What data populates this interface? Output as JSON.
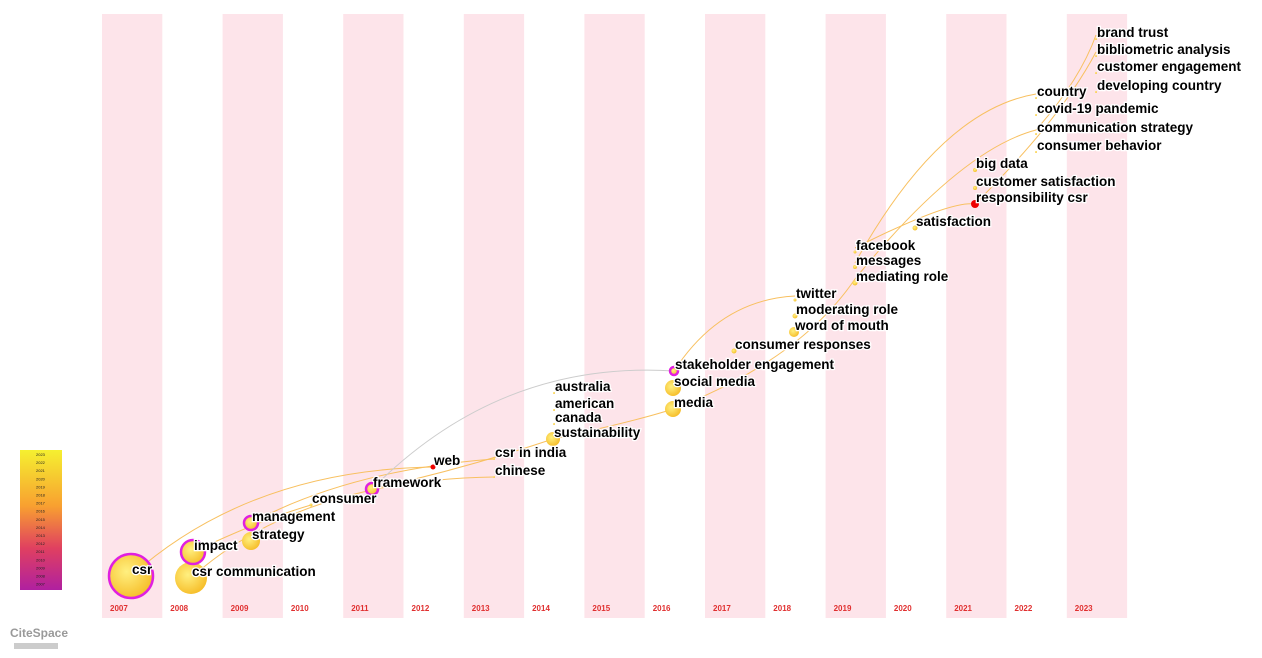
{
  "columns": [
    "2007",
    "2008",
    "2009",
    "2010",
    "2011",
    "2012",
    "2013",
    "2014",
    "2015",
    "2016",
    "2017",
    "2018",
    "2019",
    "2020",
    "2021",
    "2022",
    "2023"
  ],
  "nodes": [
    {
      "label": "csr"
    },
    {
      "label": "csr communication"
    },
    {
      "label": "impact"
    },
    {
      "label": "strategy"
    },
    {
      "label": "management"
    },
    {
      "label": "consumer"
    },
    {
      "label": "framework"
    },
    {
      "label": "web"
    },
    {
      "label": "csr in india"
    },
    {
      "label": "chinese"
    },
    {
      "label": "australia"
    },
    {
      "label": "american"
    },
    {
      "label": "canada"
    },
    {
      "label": "sustainability"
    },
    {
      "label": "stakeholder engagement"
    },
    {
      "label": "social media"
    },
    {
      "label": "media"
    },
    {
      "label": "consumer responses"
    },
    {
      "label": "twitter"
    },
    {
      "label": "moderating role"
    },
    {
      "label": "word of mouth"
    },
    {
      "label": "facebook"
    },
    {
      "label": "messages"
    },
    {
      "label": "mediating role"
    },
    {
      "label": "satisfaction"
    },
    {
      "label": "big data"
    },
    {
      "label": "customer satisfaction"
    },
    {
      "label": "responsibility csr"
    },
    {
      "label": "country"
    },
    {
      "label": "covid-19 pandemic"
    },
    {
      "label": "communication strategy"
    },
    {
      "label": "consumer behavior"
    },
    {
      "label": "brand trust"
    },
    {
      "label": "bibliometric analysis"
    },
    {
      "label": "customer engagement"
    },
    {
      "label": "developing country"
    }
  ],
  "legend": [
    "2023",
    "2022",
    "2021",
    "2020",
    "2019",
    "2018",
    "2017",
    "2016",
    "2015",
    "2014",
    "2013",
    "2012",
    "2011",
    "2010",
    "2009",
    "2008",
    "2007"
  ],
  "logo": "CiteSpace"
}
